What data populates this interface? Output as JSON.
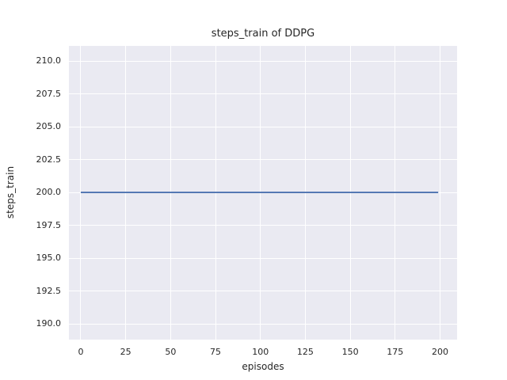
{
  "chart_data": {
    "type": "line",
    "title": "steps_train of DDPG",
    "xlabel": "episodes",
    "ylabel": "steps_train",
    "series": [
      {
        "name": "steps_train",
        "x": [
          0,
          199
        ],
        "y": [
          200,
          200
        ],
        "color": "#4c72b0",
        "linewidth": 1.8
      }
    ],
    "xticks": [
      0,
      25,
      50,
      75,
      100,
      125,
      150,
      175,
      200
    ],
    "xtick_labels": [
      "0",
      "25",
      "50",
      "75",
      "100",
      "125",
      "150",
      "175",
      "200"
    ],
    "yticks": [
      190.0,
      192.5,
      195.0,
      197.5,
      200.0,
      202.5,
      205.0,
      207.5,
      210.0
    ],
    "ytick_labels": [
      "190.0",
      "192.5",
      "195.0",
      "197.5",
      "200.0",
      "202.5",
      "205.0",
      "207.5",
      "210.0"
    ],
    "xlim": [
      -6.6,
      209.5
    ],
    "ylim": [
      188.8,
      211.15
    ],
    "grid": true,
    "legend": null,
    "style": {
      "figure_background": "#ffffff",
      "axes_background": "#eaeaf2",
      "grid_color": "#ffffff",
      "text_color": "#262626",
      "line_color": "#4c72b0"
    }
  }
}
